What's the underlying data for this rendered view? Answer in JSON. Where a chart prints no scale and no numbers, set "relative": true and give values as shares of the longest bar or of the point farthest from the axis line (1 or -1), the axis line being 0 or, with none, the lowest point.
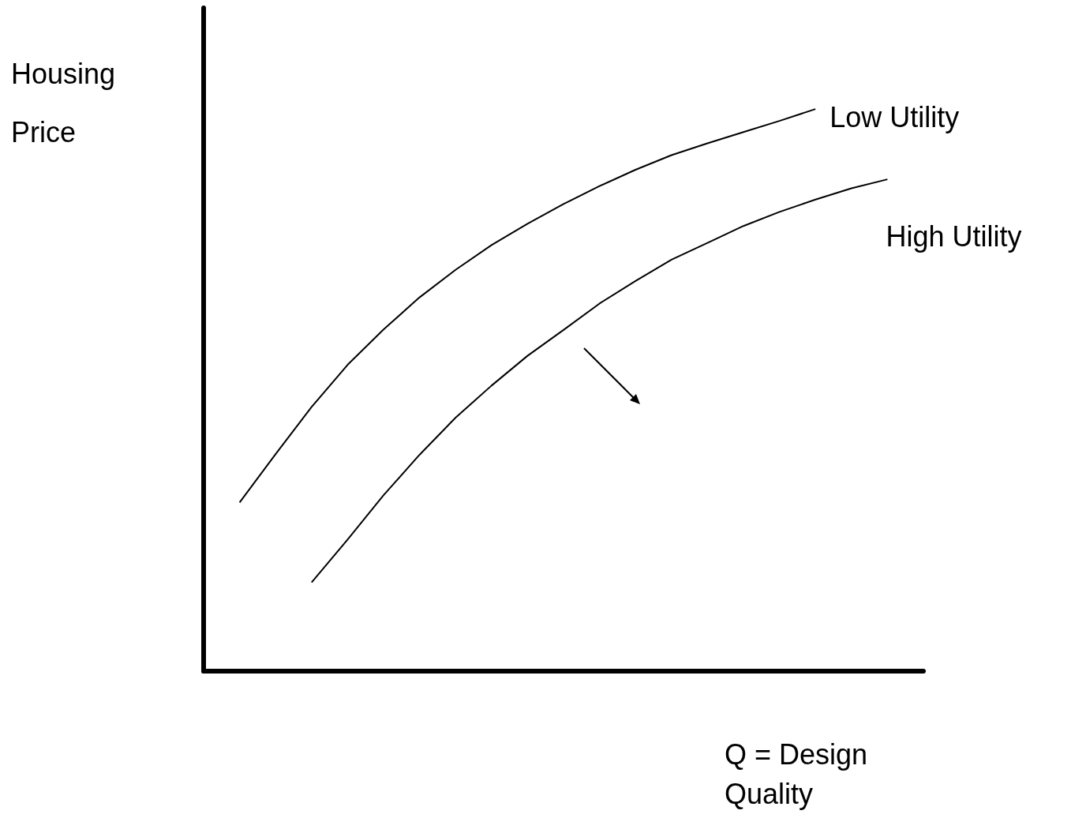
{
  "chart_data": {
    "type": "line",
    "relative": true,
    "xlabel": "Q = Design Quality",
    "ylabel": "Housing Price",
    "grid": false,
    "legend": false,
    "marker": "none",
    "line_style": "solid",
    "categories": [
      null,
      null,
      null,
      null,
      null,
      null,
      null,
      null,
      null,
      null,
      null,
      null,
      null,
      null,
      null,
      null,
      null,
      null,
      null,
      null,
      null
    ],
    "series": [
      {
        "name": "Low Utility",
        "color": "#000000",
        "values": [
          null,
          0.3,
          0.386,
          0.47,
          0.545,
          0.608,
          0.665,
          0.714,
          0.758,
          0.796,
          0.831,
          0.863,
          0.892,
          0.918,
          0.939,
          0.959,
          0.979,
          1.0,
          null,
          null,
          null
        ]
      },
      {
        "name": "High Utility",
        "color": "#000000",
        "values": [
          null,
          null,
          null,
          0.158,
          0.234,
          0.313,
          0.385,
          0.451,
          0.508,
          0.561,
          0.607,
          0.654,
          0.694,
          0.732,
          0.762,
          0.792,
          0.817,
          0.839,
          0.859,
          0.875,
          null
        ]
      }
    ]
  }
}
